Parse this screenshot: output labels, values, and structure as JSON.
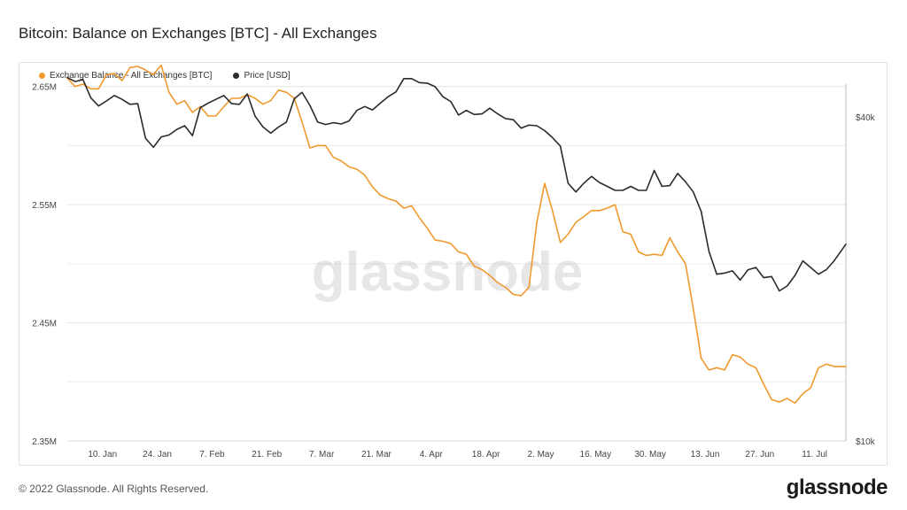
{
  "header": {
    "title": "Bitcoin: Balance on Exchanges [BTC] - All Exchanges"
  },
  "legend": {
    "items": [
      {
        "label": "Exchange Balance - All Exchanges [BTC]",
        "color": "#f09a2e"
      },
      {
        "label": "Price [USD]",
        "color": "#2b2b2b"
      }
    ]
  },
  "watermark": "glassnode",
  "footer": {
    "copyright": "© 2022 Glassnode. All Rights Reserved.",
    "brand": "glassnode"
  },
  "chart_data": {
    "type": "line",
    "x_start": "2022-01-01",
    "x_end": "2022-07-19",
    "x_ticks": [
      "10. Jan",
      "24. Jan",
      "7. Feb",
      "21. Feb",
      "7. Mar",
      "21. Mar",
      "4. Apr",
      "18. Apr",
      "2. May",
      "16. May",
      "30. May",
      "13. Jun",
      "27. Jun",
      "11. Jul"
    ],
    "x_tick_dates": [
      "2022-01-10",
      "2022-01-24",
      "2022-02-07",
      "2022-02-21",
      "2022-03-07",
      "2022-03-21",
      "2022-04-04",
      "2022-04-18",
      "2022-05-02",
      "2022-05-16",
      "2022-05-30",
      "2022-06-13",
      "2022-06-27",
      "2022-07-11"
    ],
    "y_left": {
      "ticks": [
        "2.35M",
        "2.45M",
        "2.55M",
        "2.65M"
      ],
      "tick_values": [
        2350000,
        2450000,
        2550000,
        2650000
      ],
      "lim": [
        2350000,
        2652000
      ]
    },
    "y_right": {
      "ticks": [
        "$10k",
        "$40k"
      ],
      "tick_values": [
        10000,
        40000
      ],
      "scale": "log",
      "lim": [
        10000,
        46000
      ]
    },
    "grid": true,
    "legend_position": "top-left",
    "series": [
      {
        "name": "Exchange Balance - All Exchanges [BTC]",
        "axis": "left",
        "color": "#f09a2e",
        "x": [
          "2022-01-01",
          "2022-01-03",
          "2022-01-05",
          "2022-01-07",
          "2022-01-09",
          "2022-01-11",
          "2022-01-13",
          "2022-01-15",
          "2022-01-17",
          "2022-01-19",
          "2022-01-21",
          "2022-01-23",
          "2022-01-25",
          "2022-01-27",
          "2022-01-29",
          "2022-01-31",
          "2022-02-02",
          "2022-02-04",
          "2022-02-06",
          "2022-02-08",
          "2022-02-10",
          "2022-02-12",
          "2022-02-14",
          "2022-02-16",
          "2022-02-18",
          "2022-02-20",
          "2022-02-22",
          "2022-02-24",
          "2022-02-26",
          "2022-02-28",
          "2022-03-02",
          "2022-03-04",
          "2022-03-06",
          "2022-03-08",
          "2022-03-10",
          "2022-03-12",
          "2022-03-14",
          "2022-03-16",
          "2022-03-18",
          "2022-03-20",
          "2022-03-22",
          "2022-03-24",
          "2022-03-26",
          "2022-03-28",
          "2022-03-30",
          "2022-04-01",
          "2022-04-03",
          "2022-04-05",
          "2022-04-07",
          "2022-04-09",
          "2022-04-11",
          "2022-04-13",
          "2022-04-15",
          "2022-04-17",
          "2022-04-19",
          "2022-04-21",
          "2022-04-23",
          "2022-04-25",
          "2022-04-27",
          "2022-04-29",
          "2022-05-01",
          "2022-05-03",
          "2022-05-05",
          "2022-05-07",
          "2022-05-09",
          "2022-05-11",
          "2022-05-13",
          "2022-05-15",
          "2022-05-17",
          "2022-05-19",
          "2022-05-21",
          "2022-05-23",
          "2022-05-25",
          "2022-05-27",
          "2022-05-29",
          "2022-05-31",
          "2022-06-02",
          "2022-06-04",
          "2022-06-06",
          "2022-06-08",
          "2022-06-10",
          "2022-06-12",
          "2022-06-14",
          "2022-06-16",
          "2022-06-18",
          "2022-06-20",
          "2022-06-22",
          "2022-06-24",
          "2022-06-26",
          "2022-06-28",
          "2022-06-30",
          "2022-07-02",
          "2022-07-04",
          "2022-07-06",
          "2022-07-08",
          "2022-07-10",
          "2022-07-12",
          "2022-07-14",
          "2022-07-16",
          "2022-07-19"
        ],
        "values": [
          2657000,
          2650000,
          2652000,
          2648000,
          2648000,
          2660000,
          2661000,
          2655000,
          2666000,
          2667000,
          2664000,
          2660000,
          2668000,
          2645000,
          2635000,
          2638000,
          2628000,
          2633000,
          2625000,
          2625000,
          2633000,
          2640000,
          2640000,
          2643000,
          2640000,
          2635000,
          2638000,
          2647000,
          2645000,
          2640000,
          2620000,
          2598000,
          2600000,
          2600000,
          2590000,
          2587000,
          2582000,
          2580000,
          2575000,
          2565000,
          2558000,
          2555000,
          2553000,
          2547000,
          2549000,
          2539000,
          2530000,
          2520000,
          2519000,
          2517000,
          2510000,
          2508000,
          2498000,
          2495000,
          2490000,
          2484000,
          2480000,
          2474000,
          2473000,
          2480000,
          2535000,
          2568000,
          2545000,
          2518000,
          2525000,
          2535000,
          2540000,
          2545000,
          2545000,
          2547000,
          2550000,
          2527000,
          2525000,
          2510000,
          2507000,
          2508000,
          2507000,
          2522000,
          2510000,
          2500000,
          2462000,
          2420000,
          2410000,
          2412000,
          2410000,
          2423000,
          2421000,
          2415000,
          2412000,
          2398000,
          2385000,
          2383000,
          2386000,
          2382000,
          2390000,
          2395000,
          2412000,
          2415000,
          2413000,
          2413000
        ]
      },
      {
        "name": "Price [USD]",
        "axis": "right",
        "color": "#2b2b2b",
        "x": [
          "2022-01-01",
          "2022-01-03",
          "2022-01-05",
          "2022-01-07",
          "2022-01-09",
          "2022-01-11",
          "2022-01-13",
          "2022-01-15",
          "2022-01-17",
          "2022-01-19",
          "2022-01-21",
          "2022-01-23",
          "2022-01-25",
          "2022-01-27",
          "2022-01-29",
          "2022-01-31",
          "2022-02-02",
          "2022-02-04",
          "2022-02-06",
          "2022-02-08",
          "2022-02-10",
          "2022-02-12",
          "2022-02-14",
          "2022-02-16",
          "2022-02-18",
          "2022-02-20",
          "2022-02-22",
          "2022-02-24",
          "2022-02-26",
          "2022-02-28",
          "2022-03-02",
          "2022-03-04",
          "2022-03-06",
          "2022-03-08",
          "2022-03-10",
          "2022-03-12",
          "2022-03-14",
          "2022-03-16",
          "2022-03-18",
          "2022-03-20",
          "2022-03-22",
          "2022-03-24",
          "2022-03-26",
          "2022-03-28",
          "2022-03-30",
          "2022-04-01",
          "2022-04-03",
          "2022-04-05",
          "2022-04-07",
          "2022-04-09",
          "2022-04-11",
          "2022-04-13",
          "2022-04-15",
          "2022-04-17",
          "2022-04-19",
          "2022-04-21",
          "2022-04-23",
          "2022-04-25",
          "2022-04-27",
          "2022-04-29",
          "2022-05-01",
          "2022-05-03",
          "2022-05-05",
          "2022-05-07",
          "2022-05-09",
          "2022-05-11",
          "2022-05-13",
          "2022-05-15",
          "2022-05-17",
          "2022-05-19",
          "2022-05-21",
          "2022-05-23",
          "2022-05-25",
          "2022-05-27",
          "2022-05-29",
          "2022-05-31",
          "2022-06-02",
          "2022-06-04",
          "2022-06-06",
          "2022-06-08",
          "2022-06-10",
          "2022-06-12",
          "2022-06-14",
          "2022-06-16",
          "2022-06-18",
          "2022-06-20",
          "2022-06-22",
          "2022-06-24",
          "2022-06-26",
          "2022-06-28",
          "2022-06-30",
          "2022-07-02",
          "2022-07-04",
          "2022-07-06",
          "2022-07-08",
          "2022-07-10",
          "2022-07-12",
          "2022-07-14",
          "2022-07-16",
          "2022-07-19"
        ],
        "values": [
          47300,
          46500,
          46900,
          43400,
          41900,
          42800,
          43800,
          43100,
          42200,
          42300,
          36500,
          35100,
          36700,
          37000,
          37900,
          38500,
          36900,
          41600,
          42400,
          43100,
          43800,
          42300,
          42200,
          44100,
          40100,
          38300,
          37300,
          38300,
          39100,
          43200,
          44400,
          42000,
          39100,
          38700,
          39000,
          38800,
          39300,
          41100,
          41800,
          41200,
          42400,
          43600,
          44500,
          47100,
          47100,
          46300,
          46200,
          45500,
          43600,
          42700,
          40300,
          41100,
          40400,
          40500,
          41500,
          40500,
          39700,
          39500,
          38100,
          38600,
          38500,
          37700,
          36600,
          35300,
          30100,
          29000,
          30100,
          31000,
          30200,
          29700,
          29200,
          29200,
          29700,
          29200,
          29200,
          31800,
          29700,
          29800,
          31400,
          30300,
          29000,
          26700,
          22500,
          20400,
          20500,
          20700,
          19900,
          20800,
          21000,
          20100,
          20200,
          19000,
          19400,
          20300,
          21600,
          21000,
          20400,
          20800,
          21600,
          23200
        ]
      }
    ]
  }
}
